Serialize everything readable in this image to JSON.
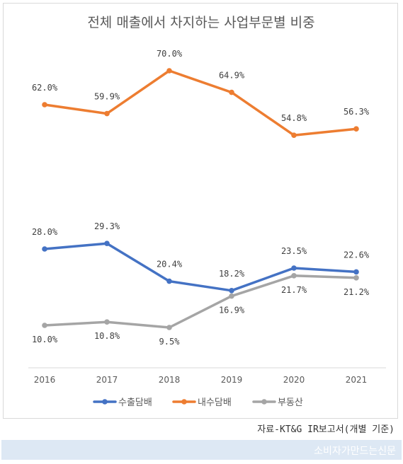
{
  "chart_data": {
    "type": "line",
    "title": "전체 매출에서 차지하는 사업부문별 비중",
    "categories": [
      "2016",
      "2017",
      "2018",
      "2019",
      "2020",
      "2021"
    ],
    "ylim": [
      0,
      80
    ],
    "grid": false,
    "legend_position": "bottom",
    "series": [
      {
        "name": "수출담배",
        "color": "#4472c4",
        "values": [
          28.0,
          29.3,
          20.4,
          18.2,
          23.5,
          22.6
        ],
        "labels": [
          "28.0%",
          "29.3%",
          "20.4%",
          "18.2%",
          "23.5%",
          "22.6%"
        ]
      },
      {
        "name": "내수담배",
        "color": "#ed7d31",
        "values": [
          62.0,
          59.9,
          70.0,
          64.9,
          54.8,
          56.3
        ],
        "labels": [
          "62.0%",
          "59.9%",
          "70.0%",
          "64.9%",
          "54.8%",
          "56.3%"
        ]
      },
      {
        "name": "부동산",
        "color": "#a5a5a5",
        "values": [
          10.0,
          10.8,
          9.5,
          16.9,
          21.7,
          21.2
        ],
        "labels": [
          "10.0%",
          "10.8%",
          "9.5%",
          "16.9%",
          "21.7%",
          "21.2%"
        ]
      }
    ]
  },
  "source_note": "자료-KT&G IR보고서(개별 기준)",
  "watermark": "소비자가만드는신문"
}
